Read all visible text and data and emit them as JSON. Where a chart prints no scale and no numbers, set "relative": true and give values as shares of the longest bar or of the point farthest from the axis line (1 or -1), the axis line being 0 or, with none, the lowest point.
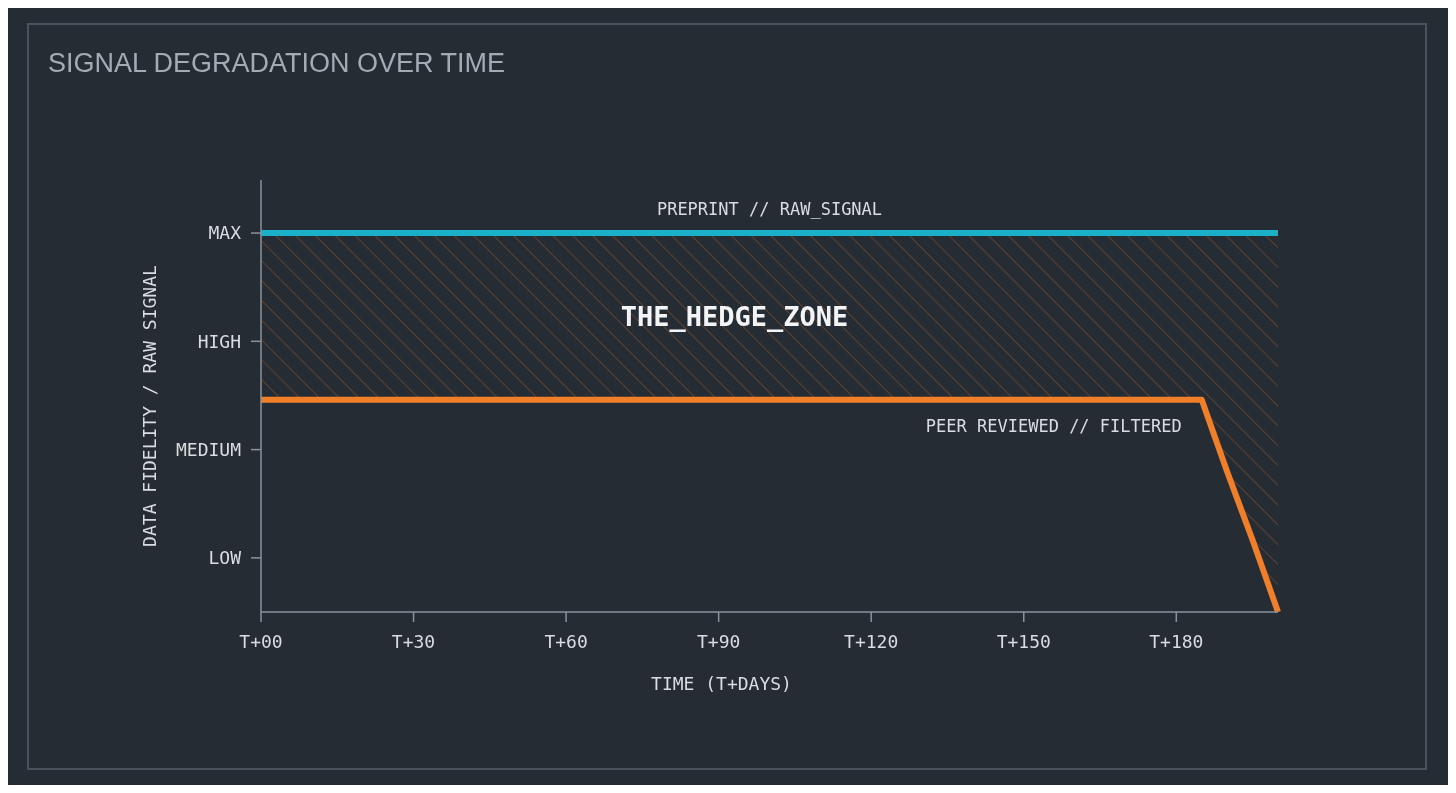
{
  "chart_data": {
    "type": "line",
    "title": "SIGNAL DEGRADATION OVER TIME",
    "xlabel": "TIME (T+DAYS)",
    "ylabel": "DATA FIDELITY / RAW SIGNAL",
    "categories": [
      "T+00",
      null,
      null,
      null,
      null,
      null,
      "T+30",
      null,
      null,
      null,
      null,
      null,
      "T+60",
      null,
      null,
      null,
      null,
      null,
      "T+90",
      null,
      null,
      null,
      null,
      null,
      "T+120",
      null,
      null,
      null,
      null,
      null,
      "T+150",
      null,
      null,
      null,
      null,
      null,
      "T+180",
      null,
      null,
      null,
      null
    ],
    "relative": true,
    "legend": false,
    "marker": "none",
    "line_style": "solid",
    "series": [
      {
        "name": "PREPRINT // RAW_SIGNAL",
        "color": "#1ab0c8",
        "values": [
          1,
          1,
          1,
          1,
          1,
          1,
          1,
          1,
          1,
          1,
          1,
          1,
          1,
          1,
          1,
          1,
          1,
          1,
          1,
          1,
          1,
          1,
          1,
          1,
          1,
          1,
          1,
          1,
          1,
          1,
          1,
          1,
          1,
          1,
          1,
          1,
          1,
          1,
          1,
          1,
          1
        ],
        "lower": [
          0.56,
          0.56,
          0.56,
          0.56,
          0.56,
          0.56,
          0.56,
          0.56,
          0.56,
          0.56,
          0.56,
          0.56,
          0.56,
          0.56,
          0.56,
          0.56,
          0.56,
          0.56,
          0.56,
          0.56,
          0.56,
          0.56,
          0.56,
          0.56,
          0.56,
          0.56,
          0.56,
          0.56,
          0.56,
          0.56,
          0.56,
          0.56,
          0.56,
          0.56,
          0.56,
          0.56,
          0.56,
          0.56,
          0.37,
          0.19,
          0
        ],
        "upper": [
          1,
          1,
          1,
          1,
          1,
          1,
          1,
          1,
          1,
          1,
          1,
          1,
          1,
          1,
          1,
          1,
          1,
          1,
          1,
          1,
          1,
          1,
          1,
          1,
          1,
          1,
          1,
          1,
          1,
          1,
          1,
          1,
          1,
          1,
          1,
          1,
          1,
          1,
          1,
          1,
          1
        ]
      },
      {
        "name": "PEER REVIEWED // FILTERED",
        "color": "#f07f2a",
        "values": [
          0.56,
          0.56,
          0.56,
          0.56,
          0.56,
          0.56,
          0.56,
          0.56,
          0.56,
          0.56,
          0.56,
          0.56,
          0.56,
          0.56,
          0.56,
          0.56,
          0.56,
          0.56,
          0.56,
          0.56,
          0.56,
          0.56,
          0.56,
          0.56,
          0.56,
          0.56,
          0.56,
          0.56,
          0.56,
          0.56,
          0.56,
          0.56,
          0.56,
          0.56,
          0.56,
          0.56,
          0.56,
          0.56,
          0.37,
          0.19,
          0
        ]
      }
    ],
    "annotations": [
      "MAX",
      "HIGH",
      "MEDIUM",
      "LOW",
      "THE_HEDGE_ZONE"
    ]
  }
}
